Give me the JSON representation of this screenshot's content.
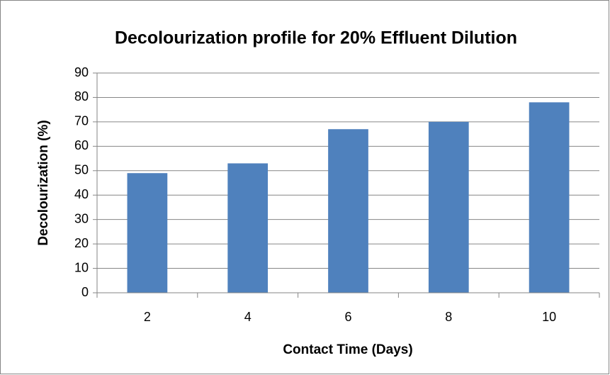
{
  "chart_data": {
    "type": "bar",
    "title": "Decolourization profile for 20% Effluent Dilution",
    "x_label": "Contact Time (Days)",
    "y_label": "Decolourization (%)",
    "categories": [
      "2",
      "4",
      "6",
      "8",
      "10"
    ],
    "values": [
      49,
      53,
      67,
      70,
      78
    ],
    "color": "#4f81bd",
    "ylim": [
      0,
      90
    ],
    "yticks": [
      0,
      10,
      20,
      30,
      40,
      50,
      60,
      70,
      80,
      90
    ],
    "grid": true
  }
}
